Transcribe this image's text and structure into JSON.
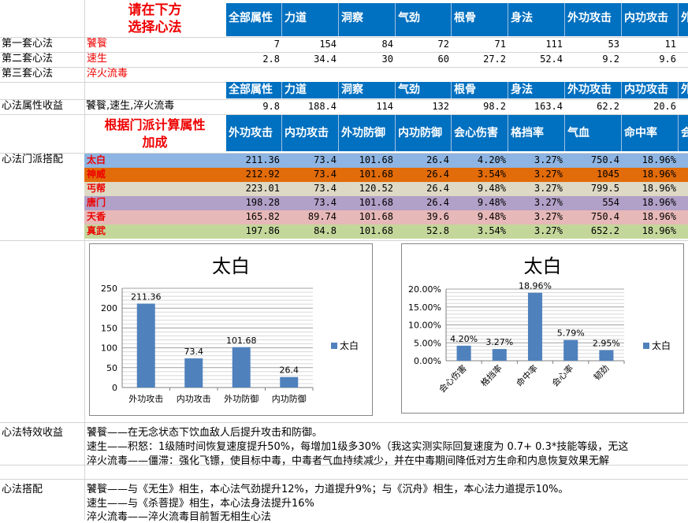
{
  "header": {
    "instruction": [
      "请在下方",
      "选择心法"
    ],
    "columns": [
      "全部属性",
      "力道",
      "洞察",
      "气劲",
      "根骨",
      "身法",
      "外功攻击",
      "内功攻击",
      "外"
    ]
  },
  "sets": [
    {
      "label": "第一套心法",
      "name": "饕餮",
      "values": [
        "7",
        "154",
        "84",
        "72",
        "71",
        "111",
        "53",
        "11"
      ]
    },
    {
      "label": "第二套心法",
      "name": "速生",
      "values": [
        "2.8",
        "34.4",
        "30",
        "60",
        "27.2",
        "52.4",
        "9.2",
        "9.6"
      ]
    },
    {
      "label": "第三套心法",
      "name": "淬火流毒",
      "values": []
    }
  ],
  "total": {
    "label": "心法属性收益",
    "name": "饕餮,速生,淬火流毒",
    "values": [
      "9.8",
      "188.4",
      "114",
      "132",
      "98.2",
      "163.4",
      "62.2",
      "20.6"
    ]
  },
  "calc": {
    "title": [
      "根据门派计算属性",
      "加成"
    ],
    "columns": [
      "外功攻击",
      "内功攻击",
      "外功防御",
      "内功防御",
      "会心伤害",
      "格挡率",
      "气血",
      "命中率",
      "会"
    ]
  },
  "sect": {
    "label": "心法门派搭配",
    "rows": [
      {
        "name": "太白",
        "color": "#8db4e2",
        "values": [
          "211.36",
          "73.4",
          "101.68",
          "26.4",
          "4.20%",
          "3.27%",
          "750.4",
          "18.96%"
        ]
      },
      {
        "name": "神威",
        "color": "#e26b0a",
        "values": [
          "212.92",
          "73.4",
          "101.68",
          "26.4",
          "3.54%",
          "3.27%",
          "1045",
          "18.96%"
        ]
      },
      {
        "name": "丐帮",
        "color": "#ddd9c4",
        "values": [
          "223.01",
          "73.4",
          "120.52",
          "26.4",
          "9.48%",
          "3.27%",
          "799.5",
          "18.96%"
        ]
      },
      {
        "name": "唐门",
        "color": "#b1a0c7",
        "values": [
          "198.28",
          "73.4",
          "101.68",
          "26.4",
          "9.48%",
          "3.27%",
          "554",
          "18.96%"
        ]
      },
      {
        "name": "天香",
        "color": "#e6b8b7",
        "values": [
          "165.82",
          "89.74",
          "101.68",
          "39.6",
          "9.48%",
          "3.27%",
          "750.4",
          "18.96%"
        ]
      },
      {
        "name": "真武",
        "color": "#c4d79b",
        "values": [
          "197.86",
          "84.8",
          "101.68",
          "52.8",
          "3.54%",
          "3.27%",
          "652.2",
          "18.96%"
        ]
      }
    ]
  },
  "chart_data": [
    {
      "type": "bar",
      "title": "太白",
      "categories": [
        "外功攻击",
        "内功攻击",
        "外功防御",
        "内功防御"
      ],
      "series": [
        {
          "name": "太白",
          "values": [
            211.36,
            73.4,
            101.68,
            26.4
          ]
        }
      ],
      "data_labels": [
        "211.36",
        "73.4",
        "101.68",
        "26.4"
      ],
      "ylim": [
        0,
        250
      ],
      "yticks": [
        "0",
        "50",
        "100",
        "150",
        "200",
        "250"
      ],
      "color": "#4f81bd",
      "grid": true,
      "legend": "right"
    },
    {
      "type": "bar",
      "title": "太白",
      "categories": [
        "会心伤害",
        "格挡率",
        "命中率",
        "会心率",
        "韧劲"
      ],
      "series": [
        {
          "name": "太白",
          "values": [
            4.2,
            3.27,
            18.96,
            5.79,
            2.95
          ]
        }
      ],
      "data_labels": [
        "4.20%",
        "3.27%",
        "18.96%",
        "5.79%",
        "2.95%"
      ],
      "ylim": [
        0,
        20
      ],
      "yticks": [
        "0.00%",
        "5.00%",
        "10.00%",
        "15.00%",
        "20.00%"
      ],
      "color": "#4f81bd",
      "grid": true,
      "legend": "right"
    }
  ],
  "effects": {
    "label": "心法特效收益",
    "lines": [
      "饕餮——在无念状态下饮血敌人后提升攻击和防御。",
      "速生——积怒：1级随时间恢复速度提升50%，每增加1级多30%（我这实测实际回复速度为 0.7+ 0.3*技能等级，无这",
      "淬火流毒——僵滞：强化飞镖，使目标中毒，中毒者气血持续减少，并在中毒期间降低对方生命和内息恢复效果无解"
    ]
  },
  "pairing": {
    "label": "心法搭配",
    "lines": [
      "饕餮——与《无生》相生，本心法气劲提升12%，力道提升9%；与《沉舟》相生，本心法力道提示10%。",
      "速生——与《杀菩提》相生，本心法身法提升16%",
      "淬火流毒——淬火流毒目前暂无相生心法"
    ]
  }
}
